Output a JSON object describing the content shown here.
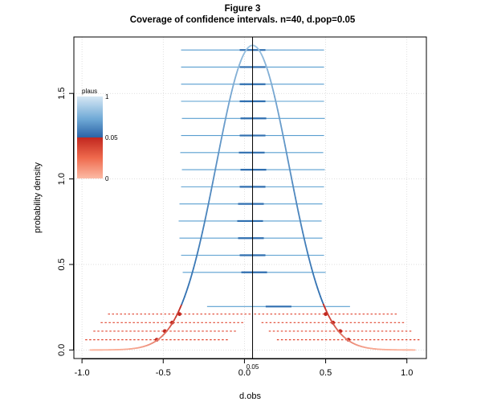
{
  "title_line1": "Figure 3",
  "title_line2": "Coverage of confidence intervals. n=40, d.pop=0.05",
  "chart_data": {
    "type": "line",
    "xlabel": "d.obs",
    "ylabel": "probability density",
    "xlim": [
      -1.05,
      1.12
    ],
    "ylim": [
      -0.05,
      1.83
    ],
    "x_ticks": [
      -1.0,
      -0.5,
      0.0,
      0.5,
      1.0
    ],
    "x_tick_labels": [
      "-1.0",
      "-0.5",
      "0.0",
      "0.5",
      "1.0"
    ],
    "y_ticks": [
      0.0,
      0.5,
      1.0,
      1.5
    ],
    "y_tick_labels": [
      "0.0",
      "0.5",
      "1.0",
      "1.5"
    ],
    "grid": true,
    "d_pop": 0.05,
    "d_pop_label": "0.05",
    "curve": {
      "center": 0.05,
      "sd": 0.224,
      "x_range": [
        -0.95,
        1.05
      ]
    },
    "interval_half_width": 0.44,
    "intervals": [
      {
        "d": -0.54,
        "y": 0.06,
        "covers": false
      },
      {
        "d": 0.64,
        "y": 0.06,
        "covers": false
      },
      {
        "d": -0.49,
        "y": 0.11,
        "covers": false
      },
      {
        "d": 0.59,
        "y": 0.11,
        "covers": false
      },
      {
        "d": -0.445,
        "y": 0.16,
        "covers": false
      },
      {
        "d": 0.545,
        "y": 0.16,
        "covers": false
      },
      {
        "d": -0.4,
        "y": 0.21,
        "covers": false
      },
      {
        "d": 0.5,
        "y": 0.21,
        "covers": false
      },
      {
        "d": 0.21,
        "y": 0.254,
        "covers": true
      },
      {
        "d": 0.06,
        "y": 0.454,
        "covers": true
      },
      {
        "d": 0.05,
        "y": 0.554,
        "covers": true
      },
      {
        "d": 0.04,
        "y": 0.654,
        "covers": true
      },
      {
        "d": 0.035,
        "y": 0.754,
        "covers": true
      },
      {
        "d": 0.04,
        "y": 0.854,
        "covers": true
      },
      {
        "d": 0.05,
        "y": 0.954,
        "covers": true
      },
      {
        "d": 0.055,
        "y": 1.054,
        "covers": true
      },
      {
        "d": 0.045,
        "y": 1.154,
        "covers": true
      },
      {
        "d": 0.05,
        "y": 1.254,
        "covers": true
      },
      {
        "d": 0.055,
        "y": 1.354,
        "covers": true
      },
      {
        "d": 0.05,
        "y": 1.454,
        "covers": true
      },
      {
        "d": 0.05,
        "y": 1.554,
        "covers": true
      },
      {
        "d": 0.05,
        "y": 1.654,
        "covers": true
      },
      {
        "d": 0.05,
        "y": 1.754,
        "covers": true
      }
    ],
    "legend": {
      "title": "plaus",
      "labels": [
        "1",
        "0.05",
        "0"
      ],
      "position": "top-left"
    },
    "colors": {
      "blue_light": "#a6cbe6",
      "blue_mid": "#5a9fd0",
      "blue_dark": "#2f6fb0",
      "red_dark": "#c1271f",
      "red_mid": "#e0442e",
      "red_light": "#fcb39c",
      "grid": "#d3d3d3"
    }
  }
}
